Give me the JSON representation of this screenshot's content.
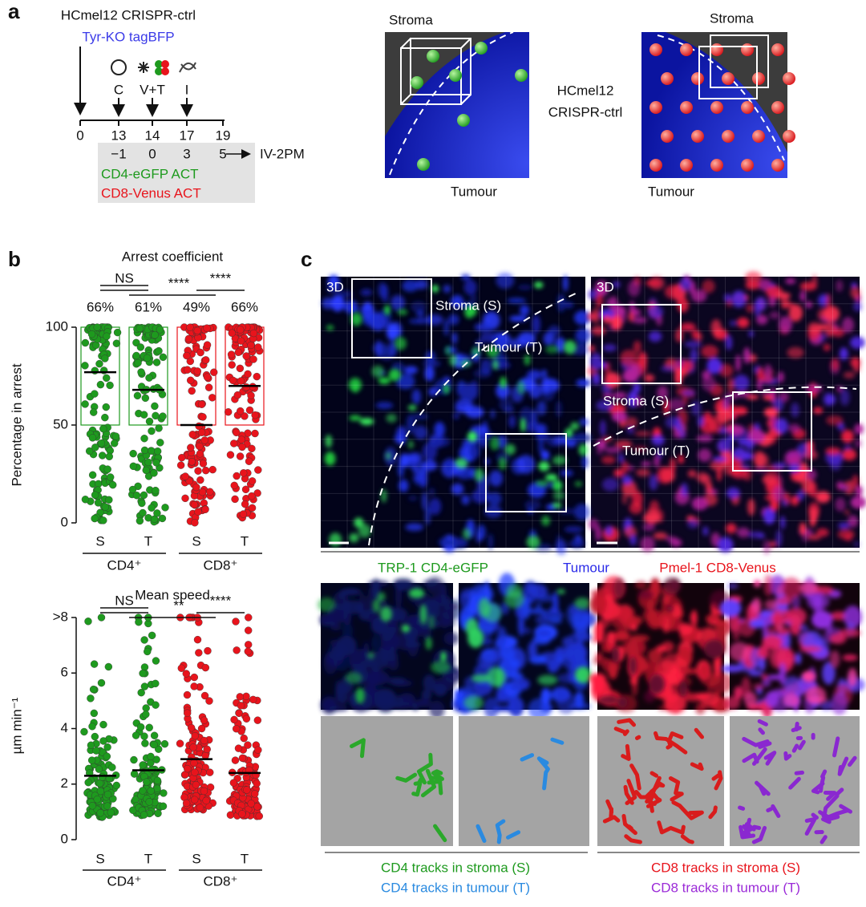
{
  "panel_a": {
    "label": "a",
    "model": "HCmel12 CRISPR-ctrl",
    "reporter": "Tyr-KO tagBFP",
    "events": [
      "C",
      "V+T",
      "I"
    ],
    "days": [
      "0",
      "13",
      "14",
      "17",
      "19"
    ],
    "relative_days": [
      "−1",
      "0",
      "3",
      "5"
    ],
    "arrow": "→",
    "readout": "IV-2PM",
    "transfers": [
      "CD4-eGFP ACT",
      "CD8-Venus ACT"
    ],
    "schematic": {
      "stroma": "Stroma",
      "tumour": "Tumour",
      "model": [
        "HCmel12",
        "CRISPR-ctrl"
      ]
    }
  },
  "panel_b": {
    "label": "b"
  },
  "panel_c": {
    "label": "c",
    "view": "3D",
    "regions": [
      "Stroma (S)",
      "Tumour (T)"
    ],
    "channels": [
      "TRP-1 CD4-eGFP",
      "Tumour",
      "Pmel-1 CD8-Venus"
    ],
    "tracks": [
      "CD4 tracks in stroma (S)",
      "CD4 tracks in tumour (T)",
      "CD8 tracks in stroma (S)",
      "CD8 tracks in tumour (T)"
    ]
  },
  "chart_data": [
    {
      "type": "dotplot",
      "title": "Arrest coefficient",
      "y_label": "Percentage in arrest",
      "categories": [
        "S",
        "T",
        "S",
        "T"
      ],
      "groups": [
        "CD4⁺",
        "CD8⁺"
      ],
      "colors": [
        "#1e9a1e",
        "#1e9a1e",
        "#e8141c",
        "#e8141c"
      ],
      "means": [
        77,
        68,
        50,
        70
      ],
      "values": [
        66,
        61,
        49,
        66
      ],
      "value_labels": [
        "66%",
        "61%",
        "49%",
        "66%"
      ],
      "box": [
        50,
        100
      ],
      "significance": [
        "NS",
        "****",
        "****"
      ],
      "ylim": [
        0,
        100
      ],
      "yticks": [
        0,
        50,
        100
      ]
    },
    {
      "type": "dotplot",
      "title": "Mean speed",
      "y_label": "µm min⁻¹",
      "categories": [
        "S",
        "T",
        "S",
        "T"
      ],
      "groups": [
        "CD4⁺",
        "CD8⁺"
      ],
      "colors": [
        "#1e9a1e",
        "#1e9a1e",
        "#e8141c",
        "#e8141c"
      ],
      "means": [
        2.3,
        2.5,
        2.9,
        2.4
      ],
      "significance": [
        "NS",
        "**",
        "****"
      ],
      "ylim": [
        0,
        8
      ],
      "yticks": [
        0,
        2,
        4,
        6,
        {
          "value": 8,
          "label": ">8"
        }
      ]
    }
  ]
}
